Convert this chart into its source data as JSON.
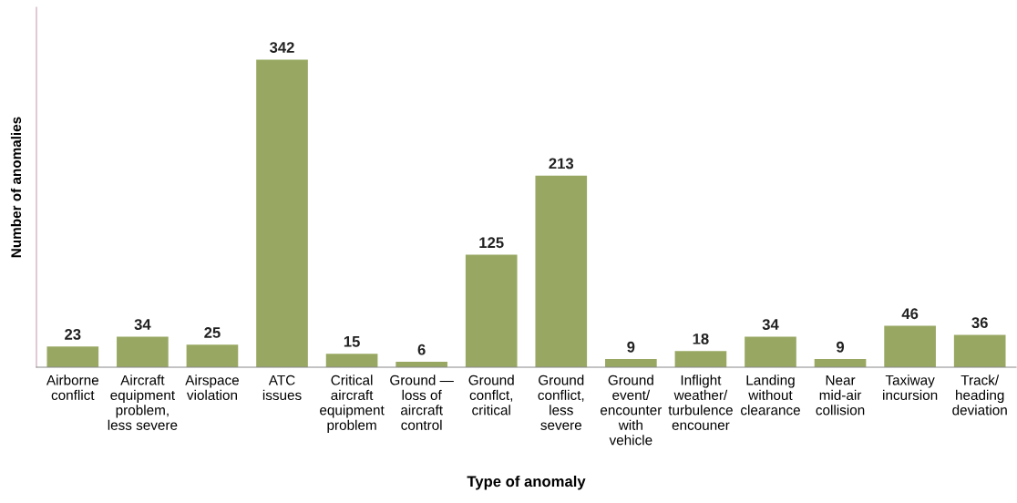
{
  "chart_data": {
    "type": "bar",
    "xlabel": "Type of anomaly",
    "ylabel": "Number of anomalies",
    "categories": [
      "Airborne\nconflict",
      "Aircraft\nequipment\nproblem,\nless severe",
      "Airspace\nviolation",
      "ATC\nissues",
      "Critical\naircraft\nequipment\nproblem",
      "Ground —\nloss of\naircraft\ncontrol",
      "Ground\nconflct,\ncritical",
      "Ground\nconflict,\nless\nsevere",
      "Ground\nevent/\nencounter\nwith\nvehicle",
      "Inflight\nweather/\nturbulence\nencouner",
      "Landing\nwithout\nclearance",
      "Near\nmid-air\ncollision",
      "Taxiway\nincursion",
      "Track/\nheading\ndeviation"
    ],
    "values": [
      23,
      34,
      25,
      342,
      15,
      6,
      125,
      213,
      9,
      18,
      34,
      9,
      46,
      36
    ],
    "color": "#98a862",
    "data_labels": true,
    "grid": false,
    "legend": false,
    "tick_labels": "x"
  }
}
